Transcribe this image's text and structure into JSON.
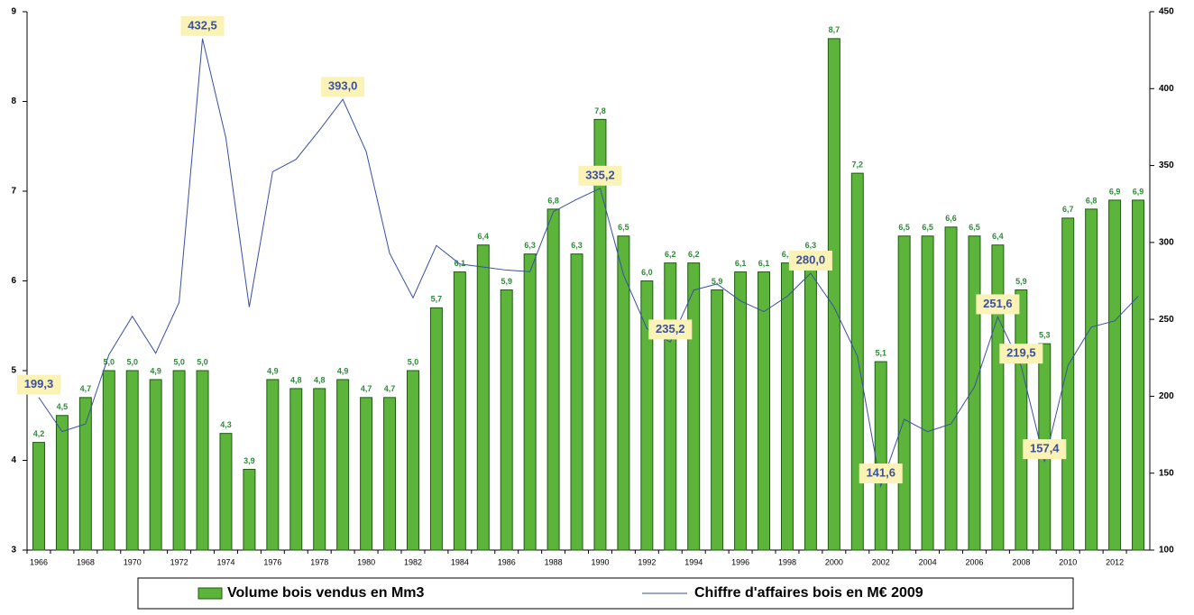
{
  "chart_data": {
    "type": "bar_line",
    "categories": [
      "1966",
      null,
      "1968",
      null,
      "1970",
      null,
      "1972",
      null,
      "1974",
      null,
      "1976",
      null,
      "1978",
      null,
      "1980",
      null,
      "1982",
      null,
      "1984",
      null,
      "1986",
      null,
      "1988",
      null,
      "1990",
      null,
      "1992",
      null,
      "1994",
      null,
      "1996",
      null,
      "1998",
      null,
      "2000",
      null,
      "2002",
      null,
      "2004",
      null,
      "2006",
      null,
      "2008",
      null,
      "2010",
      null,
      "2012",
      null
    ],
    "series": [
      {
        "name": "Volume bois vendus en Mm3",
        "type": "bar",
        "color": "#5cb53a",
        "values": [
          4.2,
          4.5,
          4.7,
          5.0,
          5.0,
          4.9,
          5.0,
          5.0,
          4.3,
          3.9,
          4.9,
          4.8,
          4.8,
          4.9,
          4.7,
          4.7,
          5.0,
          5.7,
          6.1,
          6.4,
          5.9,
          6.3,
          6.8,
          6.3,
          7.8,
          6.5,
          6.0,
          6.2,
          6.2,
          5.9,
          6.1,
          6.1,
          6.2,
          6.3,
          8.7,
          7.2,
          5.1,
          6.5,
          6.5,
          6.6,
          6.5,
          6.4,
          5.9,
          5.3,
          6.7,
          6.8,
          6.9,
          6.9
        ],
        "value_labels": [
          "4,2",
          "4,5",
          "4,7",
          "5,0",
          "5,0",
          "4,9",
          "5,0",
          "5,0",
          "4,3",
          "3,9",
          "4,9",
          "4,8",
          "4,8",
          "4,9",
          "4,7",
          "4,7",
          "5,0",
          "5,7",
          "6,1",
          "6,4",
          "5,9",
          "6,3",
          "6,8",
          "6,3",
          "7,8",
          "6,5",
          "6,0",
          "6,2",
          "6,2",
          "5,9",
          "6,1",
          "6,1",
          "6,2",
          "6,3",
          "8,7",
          "7,2",
          "5,1",
          "6,5",
          "6,5",
          "6,6",
          "6,5",
          "6,4",
          "5,9",
          "5,3",
          "6,7",
          "6,8",
          "6,9",
          "6,9"
        ]
      },
      {
        "name": "Chiffre d'affaires bois en M€ 2009",
        "type": "line",
        "axis": "y2",
        "color": "#3a4fa0",
        "values": [
          199.3,
          177,
          182,
          227,
          252,
          228,
          261,
          432.5,
          368,
          258,
          346,
          354,
          373,
          393.0,
          359,
          293,
          264,
          298,
          286,
          284,
          282,
          281,
          320,
          328,
          335.2,
          279,
          244,
          235.2,
          269,
          273,
          262,
          255,
          265,
          280.0,
          258,
          226,
          141.6,
          185,
          177,
          182,
          206,
          251.6,
          219.5,
          157.4,
          220,
          245,
          249,
          265
        ],
        "value_labels": [
          "199,3",
          null,
          null,
          null,
          null,
          null,
          null,
          "432,5",
          null,
          null,
          null,
          null,
          null,
          "393,0",
          null,
          null,
          null,
          null,
          null,
          null,
          null,
          null,
          null,
          null,
          "335,2",
          null,
          null,
          "235,2",
          null,
          null,
          null,
          null,
          null,
          "280,0",
          null,
          null,
          "141,6",
          null,
          null,
          null,
          null,
          "251,6",
          "219,5",
          "157,4",
          null,
          null,
          null,
          null
        ]
      }
    ],
    "ylim": [
      3,
      9
    ],
    "yticks": [
      3,
      4,
      5,
      6,
      7,
      8,
      9
    ],
    "y2lim": [
      100,
      450
    ],
    "y2ticks": [
      100,
      150,
      200,
      250,
      300,
      350,
      400,
      450
    ]
  }
}
